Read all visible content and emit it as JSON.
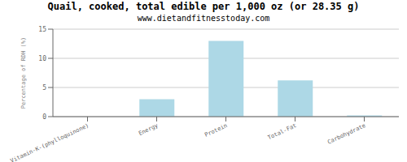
{
  "chart_data": {
    "type": "bar",
    "title": "Quail, cooked, total edible per 1,000 oz (or 28.35 g)",
    "subtitle": "www.dietandfitnesstoday.com",
    "categories": [
      "Vitamin-K-(phylloquinone)",
      "Energy",
      "Protein",
      "Total-Fat",
      "Carbohydrate"
    ],
    "values": [
      0,
      3.0,
      13.0,
      6.2,
      0.2
    ],
    "color": "#add8e6",
    "ylabel": "Percentage of RDH (%)",
    "ylim": [
      0,
      15
    ],
    "yticks": [
      0,
      5,
      10,
      15
    ],
    "grid": true
  }
}
